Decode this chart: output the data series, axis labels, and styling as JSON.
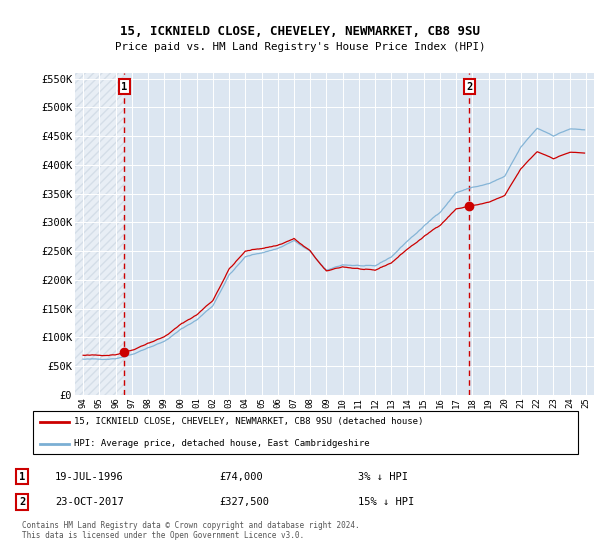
{
  "title1": "15, ICKNIELD CLOSE, CHEVELEY, NEWMARKET, CB8 9SU",
  "title2": "Price paid vs. HM Land Registry's House Price Index (HPI)",
  "ylim": [
    0,
    560000
  ],
  "yticks": [
    0,
    50000,
    100000,
    150000,
    200000,
    250000,
    300000,
    350000,
    400000,
    450000,
    500000,
    550000
  ],
  "ytick_labels": [
    "£0",
    "£50K",
    "£100K",
    "£150K",
    "£200K",
    "£250K",
    "£300K",
    "£350K",
    "£400K",
    "£450K",
    "£500K",
    "£550K"
  ],
  "sale1_year": 1996.55,
  "sale1_price": 74000,
  "sale2_year": 2017.81,
  "sale2_price": 327500,
  "line1_color": "#cc0000",
  "line2_color": "#7bafd4",
  "legend1": "15, ICKNIELD CLOSE, CHEVELEY, NEWMARKET, CB8 9SU (detached house)",
  "legend2": "HPI: Average price, detached house, East Cambridgeshire",
  "sale1_date_str": "19-JUL-1996",
  "sale1_price_str": "£74,000",
  "sale1_pct": "3% ↓ HPI",
  "sale2_date_str": "23-OCT-2017",
  "sale2_price_str": "£327,500",
  "sale2_pct": "15% ↓ HPI",
  "footnote": "Contains HM Land Registry data © Crown copyright and database right 2024.\nThis data is licensed under the Open Government Licence v3.0.",
  "hatch_color": "#c8d8e8",
  "bg_color": "#dce6f1"
}
